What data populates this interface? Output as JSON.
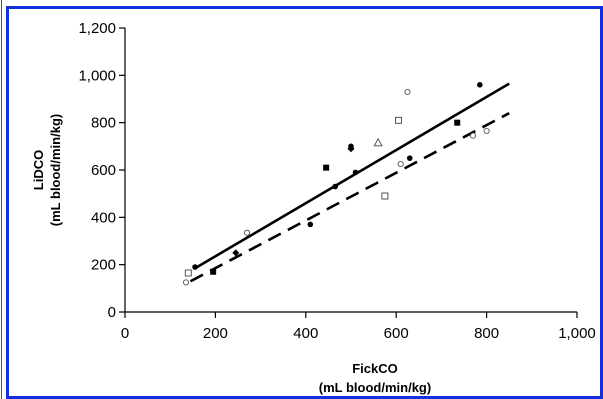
{
  "chart_data": {
    "type": "scatter",
    "title": "",
    "xlabel": [
      "FickCO",
      "(mL blood/min/kg)"
    ],
    "ylabel": [
      "LiDCO",
      "(mL blood/min/kg)"
    ],
    "xlim": [
      0,
      1000
    ],
    "ylim": [
      0,
      1200
    ],
    "x_ticks": [
      0,
      200,
      400,
      600,
      800,
      1000
    ],
    "y_ticks": [
      0,
      200,
      400,
      600,
      800,
      1000,
      1200
    ],
    "x_tick_labels": [
      "0",
      "200",
      "400",
      "600",
      "800",
      "1,000"
    ],
    "y_tick_labels": [
      "0",
      "200",
      "400",
      "600",
      "800",
      "1,000",
      "1,200"
    ],
    "grid": false,
    "legend": "none",
    "series": [
      {
        "marker": "filled-circle",
        "points": [
          [
            155,
            190
          ],
          [
            410,
            370
          ],
          [
            465,
            530
          ],
          [
            500,
            700
          ],
          [
            510,
            590
          ],
          [
            630,
            650
          ],
          [
            785,
            960
          ]
        ]
      },
      {
        "marker": "filled-square",
        "points": [
          [
            195,
            170
          ],
          [
            445,
            610
          ],
          [
            735,
            800
          ]
        ]
      },
      {
        "marker": "filled-diamond",
        "points": [
          [
            245,
            250
          ],
          [
            500,
            690
          ]
        ]
      },
      {
        "marker": "open-square",
        "points": [
          [
            140,
            165
          ],
          [
            575,
            490
          ],
          [
            605,
            810
          ]
        ]
      },
      {
        "marker": "open-triangle",
        "points": [
          [
            560,
            715
          ]
        ]
      },
      {
        "marker": "open-circle",
        "points": [
          [
            135,
            125
          ],
          [
            270,
            335
          ],
          [
            610,
            625
          ],
          [
            625,
            930
          ],
          [
            770,
            745
          ],
          [
            800,
            765
          ]
        ]
      }
    ],
    "lines": [
      {
        "style": "solid",
        "color": "#000000",
        "x": [
          155,
          850
        ],
        "y": [
          185,
          965
        ]
      },
      {
        "style": "dashed",
        "color": "#000000",
        "x": [
          145,
          850
        ],
        "y": [
          130,
          840
        ]
      }
    ]
  }
}
